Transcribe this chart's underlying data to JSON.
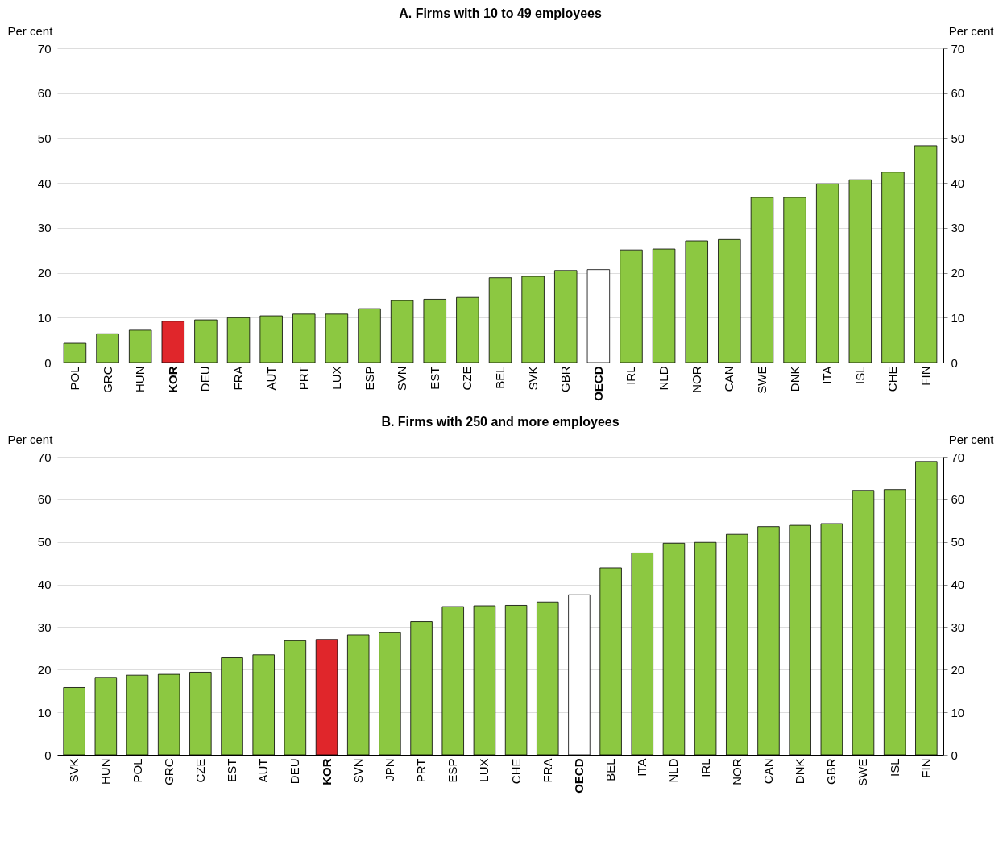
{
  "chart_data": [
    {
      "type": "bar",
      "title": "A. Firms with 10 to 49 employees",
      "ylabel": "Per cent",
      "y2label": "Per cent",
      "categories": [
        "POL",
        "GRC",
        "HUN",
        "KOR",
        "DEU",
        "FRA",
        "AUT",
        "PRT",
        "LUX",
        "ESP",
        "SVN",
        "EST",
        "CZE",
        "BEL",
        "SVK",
        "GBR",
        "OECD",
        "IRL",
        "NLD",
        "NOR",
        "CAN",
        "SWE",
        "DNK",
        "ITA",
        "ISL",
        "CHE",
        "FIN"
      ],
      "values": [
        4.3,
        6.4,
        7.2,
        9.2,
        9.5,
        10.0,
        10.4,
        10.8,
        10.8,
        12.0,
        13.8,
        14.1,
        14.5,
        18.9,
        19.2,
        20.5,
        20.7,
        25.1,
        25.3,
        27.1,
        27.4,
        36.8,
        36.8,
        39.8,
        40.7,
        42.4,
        48.3
      ],
      "colors": [
        "#8cc841",
        "#8cc841",
        "#8cc841",
        "#e0262b",
        "#8cc841",
        "#8cc841",
        "#8cc841",
        "#8cc841",
        "#8cc841",
        "#8cc841",
        "#8cc841",
        "#8cc841",
        "#8cc841",
        "#8cc841",
        "#8cc841",
        "#8cc841",
        "#ffffff",
        "#8cc841",
        "#8cc841",
        "#8cc841",
        "#8cc841",
        "#8cc841",
        "#8cc841",
        "#8cc841",
        "#8cc841",
        "#8cc841",
        "#8cc841"
      ],
      "ylim": [
        0,
        70
      ],
      "yticks": [
        0,
        10,
        20,
        30,
        40,
        50,
        60,
        70
      ],
      "y2lim": [
        0,
        70
      ],
      "y2ticks": [
        0,
        10,
        20,
        30,
        40,
        50,
        60,
        70
      ],
      "grid": "y"
    },
    {
      "type": "bar",
      "title": "B. Firms with 250 and more employees",
      "ylabel": "Per cent",
      "y2label": "Per cent",
      "categories": [
        "SVK",
        "HUN",
        "POL",
        "GRC",
        "CZE",
        "EST",
        "AUT",
        "DEU",
        "KOR",
        "SVN",
        "JPN",
        "PRT",
        "ESP",
        "LUX",
        "CHE",
        "FRA",
        "OECD",
        "BEL",
        "ITA",
        "NLD",
        "IRL",
        "NOR",
        "CAN",
        "DNK",
        "GBR",
        "SWE",
        "ISL",
        "FIN"
      ],
      "values": [
        15.8,
        18.2,
        18.7,
        18.9,
        19.4,
        22.8,
        23.5,
        26.8,
        27.1,
        28.2,
        28.7,
        31.3,
        34.8,
        35.0,
        35.1,
        35.9,
        37.6,
        43.9,
        47.4,
        49.7,
        49.9,
        51.8,
        53.6,
        53.9,
        54.3,
        62.1,
        62.3,
        68.9
      ],
      "colors": [
        "#8cc841",
        "#8cc841",
        "#8cc841",
        "#8cc841",
        "#8cc841",
        "#8cc841",
        "#8cc841",
        "#8cc841",
        "#e0262b",
        "#8cc841",
        "#8cc841",
        "#8cc841",
        "#8cc841",
        "#8cc841",
        "#8cc841",
        "#8cc841",
        "#ffffff",
        "#8cc841",
        "#8cc841",
        "#8cc841",
        "#8cc841",
        "#8cc841",
        "#8cc841",
        "#8cc841",
        "#8cc841",
        "#8cc841",
        "#8cc841",
        "#8cc841"
      ],
      "ylim": [
        0,
        70
      ],
      "yticks": [
        0,
        10,
        20,
        30,
        40,
        50,
        60,
        70
      ],
      "y2lim": [
        0,
        70
      ],
      "y2ticks": [
        0,
        10,
        20,
        30,
        40,
        50,
        60,
        70
      ],
      "grid": "y"
    }
  ]
}
